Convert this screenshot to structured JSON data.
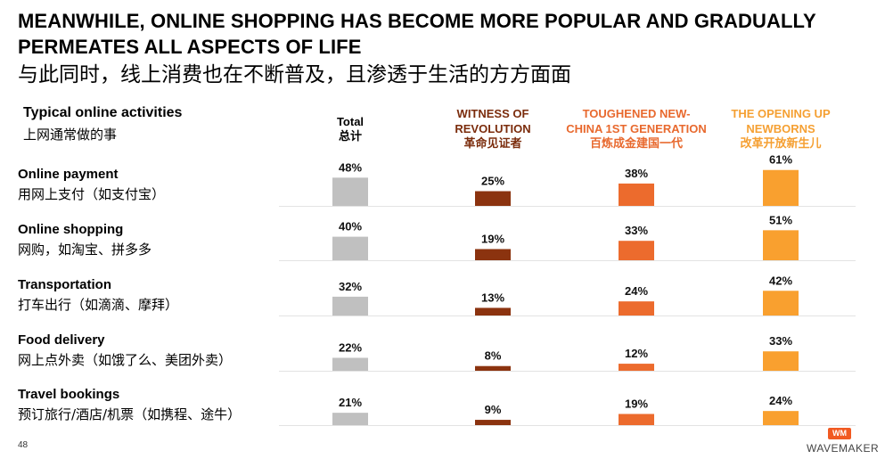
{
  "title_en": "MEANWHILE, ONLINE SHOPPING HAS BECOME MORE POPULAR AND GRADUALLY PERMEATES ALL ASPECTS OF LIFE",
  "title_zh": "与此同时，线上消费也在不断普及，且渗透于生活的方方面面",
  "section_label_en": "Typical online activities",
  "section_label_zh": "上网通常做的事",
  "page_number": "48",
  "logo": {
    "mark": "WM",
    "name": "WAVEMAKER"
  },
  "columns": [
    {
      "line1": "Total",
      "line2": "",
      "zh": "总计",
      "color": "#000000"
    },
    {
      "line1": "WITNESS OF",
      "line2": "REVOLUTION",
      "zh": "革命见证者",
      "color": "#7b2c0c"
    },
    {
      "line1": "TOUGHENED NEW-",
      "line2": "CHINA 1ST GENERATION",
      "zh": "百炼成金建国一代",
      "color": "#e8692e"
    },
    {
      "line1": "THE OPENING UP",
      "line2": "NEWBORNS",
      "zh": "改革开放新生儿",
      "color": "#f5a033"
    }
  ],
  "categories": [
    {
      "en": "Online payment",
      "zh": "用网上支付（如支付宝）"
    },
    {
      "en": "Online shopping",
      "zh": "网购，如淘宝、拼多多"
    },
    {
      "en": "Transportation",
      "zh": "打车出行（如滴滴、摩拜）"
    },
    {
      "en": "Food delivery",
      "zh": "网上点外卖（如饿了么、美团外卖）"
    },
    {
      "en": "Travel bookings",
      "zh": "预订旅行/酒店/机票（如携程、途牛）"
    }
  ],
  "chart_data": {
    "type": "bar",
    "categories": [
      "Online payment",
      "Online shopping",
      "Transportation",
      "Food delivery",
      "Travel bookings"
    ],
    "series": [
      {
        "name": "Total",
        "values": [
          48,
          40,
          32,
          22,
          21
        ],
        "color": "#c0c0c0"
      },
      {
        "name": "WITNESS OF REVOLUTION",
        "values": [
          25,
          19,
          13,
          8,
          9
        ],
        "color": "#8b330f"
      },
      {
        "name": "TOUGHENED NEW-CHINA 1ST GENERATION",
        "values": [
          38,
          33,
          24,
          12,
          19
        ],
        "color": "#ec6b2d"
      },
      {
        "name": "THE OPENING UP NEWBORNS",
        "values": [
          61,
          51,
          42,
          33,
          24
        ],
        "color": "#f9a02f"
      }
    ],
    "value_suffix": "%",
    "ylim": [
      0,
      61
    ]
  }
}
